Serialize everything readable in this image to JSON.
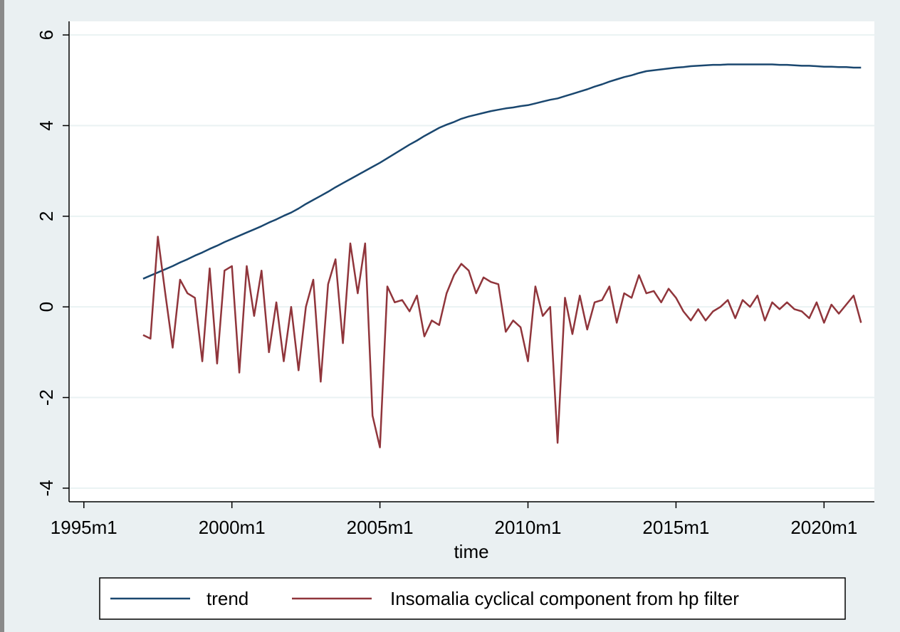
{
  "chart_data": {
    "type": "line",
    "x_label": "time",
    "x": [
      1997.0,
      1997.25,
      1997.5,
      1997.75,
      1998.0,
      1998.25,
      1998.5,
      1998.75,
      1999.0,
      1999.25,
      1999.5,
      1999.75,
      2000.0,
      2000.25,
      2000.5,
      2000.75,
      2001.0,
      2001.25,
      2001.5,
      2001.75,
      2002.0,
      2002.25,
      2002.5,
      2002.75,
      2003.0,
      2003.25,
      2003.5,
      2003.75,
      2004.0,
      2004.25,
      2004.5,
      2004.75,
      2005.0,
      2005.25,
      2005.5,
      2005.75,
      2006.0,
      2006.25,
      2006.5,
      2006.75,
      2007.0,
      2007.25,
      2007.5,
      2007.75,
      2008.0,
      2008.25,
      2008.5,
      2008.75,
      2009.0,
      2009.25,
      2009.5,
      2009.75,
      2010.0,
      2010.25,
      2010.5,
      2010.75,
      2011.0,
      2011.25,
      2011.5,
      2011.75,
      2012.0,
      2012.25,
      2012.5,
      2012.75,
      2013.0,
      2013.25,
      2013.5,
      2013.75,
      2014.0,
      2014.25,
      2014.5,
      2014.75,
      2015.0,
      2015.25,
      2015.5,
      2015.75,
      2016.0,
      2016.25,
      2016.5,
      2016.75,
      2017.0,
      2017.25,
      2017.5,
      2017.75,
      2018.0,
      2018.25,
      2018.5,
      2018.75,
      2019.0,
      2019.25,
      2019.5,
      2019.75,
      2020.0,
      2020.25,
      2020.5,
      2020.75,
      2021.0,
      2021.25
    ],
    "series": [
      {
        "name": "trend",
        "color": "#1a476f",
        "values": [
          0.62,
          0.69,
          0.76,
          0.83,
          0.9,
          0.98,
          1.05,
          1.13,
          1.2,
          1.28,
          1.35,
          1.43,
          1.5,
          1.57,
          1.64,
          1.71,
          1.78,
          1.86,
          1.93,
          2.01,
          2.08,
          2.17,
          2.27,
          2.36,
          2.45,
          2.54,
          2.64,
          2.73,
          2.82,
          2.91,
          3.0,
          3.09,
          3.18,
          3.28,
          3.38,
          3.48,
          3.58,
          3.67,
          3.77,
          3.86,
          3.95,
          4.02,
          4.08,
          4.15,
          4.2,
          4.24,
          4.28,
          4.32,
          4.35,
          4.38,
          4.4,
          4.43,
          4.45,
          4.49,
          4.53,
          4.57,
          4.6,
          4.65,
          4.7,
          4.75,
          4.8,
          4.86,
          4.91,
          4.97,
          5.02,
          5.07,
          5.11,
          5.16,
          5.2,
          5.22,
          5.24,
          5.26,
          5.28,
          5.29,
          5.31,
          5.32,
          5.33,
          5.34,
          5.34,
          5.35,
          5.35,
          5.35,
          5.35,
          5.35,
          5.35,
          5.35,
          5.34,
          5.34,
          5.33,
          5.32,
          5.32,
          5.31,
          5.3,
          5.3,
          5.29,
          5.29,
          5.28,
          5.28
        ]
      },
      {
        "name": "Insomalia cyclical component from hp filter",
        "color": "#90353b",
        "values": [
          -0.62,
          -0.7,
          1.55,
          0.3,
          -0.9,
          0.6,
          0.3,
          0.2,
          -1.2,
          0.85,
          -1.25,
          0.8,
          0.9,
          -1.45,
          0.9,
          -0.2,
          0.8,
          -1.0,
          0.1,
          -1.2,
          0.0,
          -1.4,
          0.0,
          0.6,
          -1.65,
          0.5,
          1.05,
          -0.8,
          1.4,
          0.3,
          1.4,
          -2.4,
          -3.1,
          0.45,
          0.1,
          0.15,
          -0.1,
          0.25,
          -0.65,
          -0.3,
          -0.4,
          0.3,
          0.7,
          0.95,
          0.8,
          0.3,
          0.65,
          0.55,
          0.5,
          -0.55,
          -0.3,
          -0.45,
          -1.2,
          0.45,
          -0.2,
          0.0,
          -3.0,
          0.2,
          -0.6,
          0.25,
          -0.5,
          0.1,
          0.15,
          0.45,
          -0.35,
          0.3,
          0.2,
          0.7,
          0.3,
          0.35,
          0.1,
          0.4,
          0.2,
          -0.1,
          -0.3,
          -0.05,
          -0.3,
          -0.1,
          0.0,
          0.15,
          -0.25,
          0.15,
          0.0,
          0.25,
          -0.3,
          0.1,
          -0.05,
          0.1,
          -0.05,
          -0.1,
          -0.25,
          0.1,
          -0.35,
          0.05,
          -0.15,
          0.05,
          0.25,
          -0.35
        ]
      }
    ],
    "xlim": [
      1994.5,
      2021.7
    ],
    "xticks": [
      {
        "value": 1995,
        "label": "1995m1"
      },
      {
        "value": 2000,
        "label": "2000m1"
      },
      {
        "value": 2005,
        "label": "2005m1"
      },
      {
        "value": 2010,
        "label": "2010m1"
      },
      {
        "value": 2015,
        "label": "2015m1"
      },
      {
        "value": 2020,
        "label": "2020m1"
      }
    ],
    "ylim": [
      -4.3,
      6.3
    ],
    "yticks": [
      -4,
      -2,
      0,
      2,
      4,
      6
    ],
    "grid": true,
    "legend_position": "bottom"
  }
}
